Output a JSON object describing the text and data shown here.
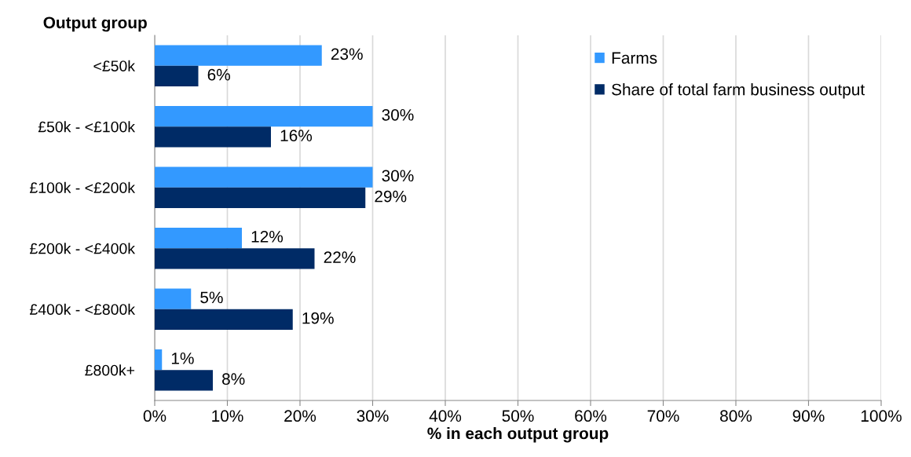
{
  "chart_data": {
    "type": "bar",
    "orientation": "horizontal",
    "ylabel": "Output group",
    "xlabel": "% in each output group",
    "categories": [
      "<£50k",
      "£50k - <£100k",
      "£100k - <£200k",
      "£200k - <£400k",
      "£400k - <£800k",
      "£800k+"
    ],
    "series": [
      {
        "name": "Farms",
        "color": "#3399ff",
        "values": [
          23,
          30,
          30,
          12,
          5,
          1
        ],
        "value_labels": [
          "23%",
          "30%",
          "30%",
          "12%",
          "5%",
          "1%"
        ]
      },
      {
        "name": "Share of total farm business output",
        "color": "#002b66",
        "values": [
          6,
          16,
          29,
          22,
          19,
          8
        ],
        "value_labels": [
          "6%",
          "16%",
          "29%",
          "22%",
          "19%",
          "8%"
        ]
      }
    ],
    "xlim": [
      0,
      100
    ],
    "xticks": [
      {
        "value": 0,
        "label": "0%"
      },
      {
        "value": 10,
        "label": "10%"
      },
      {
        "value": 20,
        "label": "20%"
      },
      {
        "value": 30,
        "label": "30%"
      },
      {
        "value": 40,
        "label": "40%"
      },
      {
        "value": 50,
        "label": "50%"
      },
      {
        "value": 60,
        "label": "60%"
      },
      {
        "value": 70,
        "label": "70%"
      },
      {
        "value": 80,
        "label": "80%"
      },
      {
        "value": 90,
        "label": "90%"
      },
      {
        "value": 100,
        "label": "100%"
      }
    ],
    "grid": "x",
    "legend": "top right"
  }
}
